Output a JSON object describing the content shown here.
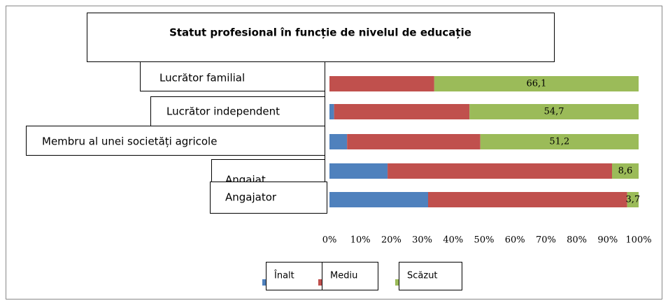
{
  "chart_data": {
    "type": "stacked_bar_horizontal_percent",
    "title": "Statut profesional în funcție de nivelul de educație",
    "categories": [
      "Lucrător familial",
      "Lucrător independent",
      "Membru al unei societăți agricole",
      "Angajat",
      "Angajator"
    ],
    "series": [
      {
        "name": "Înalt",
        "color": "#4f81bd",
        "values": [
          0,
          1.5,
          5.7,
          18.8,
          31.9
        ]
      },
      {
        "name": "Mediu",
        "color": "#c0504d",
        "values": [
          33.9,
          43.8,
          43.1,
          72.6,
          64.4
        ]
      },
      {
        "name": "Scăzut",
        "color": "#9bbb59",
        "values": [
          66.1,
          54.7,
          51.2,
          8.6,
          3.7
        ],
        "value_labels": [
          "66,1",
          "54,7",
          "51,2",
          "8,6",
          "3,7"
        ]
      }
    ],
    "xlim": [
      0,
      100
    ],
    "xticks": [
      {
        "value": 0,
        "label": "0%"
      },
      {
        "value": 10,
        "label": "10%"
      },
      {
        "value": 20,
        "label": "20%"
      },
      {
        "value": 30,
        "label": "30%"
      },
      {
        "value": 40,
        "label": "40%"
      },
      {
        "value": 50,
        "label": "50%"
      },
      {
        "value": 60,
        "label": "60%"
      },
      {
        "value": 70,
        "label": "70%"
      },
      {
        "value": 80,
        "label": "80%"
      },
      {
        "value": 90,
        "label": "90%"
      },
      {
        "value": 100,
        "label": "100%"
      }
    ]
  }
}
